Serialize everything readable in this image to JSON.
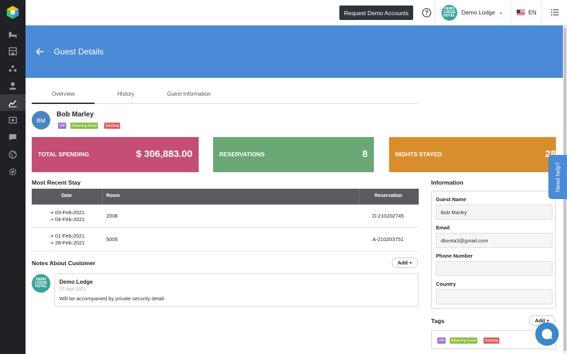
{
  "topbar": {
    "demo_button": "Request Demo Accounts",
    "help_icon": "?",
    "hotel_logo_text": "DEMO LODGE HOTEL",
    "property_name": "Demo Lodge",
    "language": "EN"
  },
  "sidebar": {
    "items": [
      "bed-icon",
      "building-icon",
      "users-group-icon",
      "person-icon",
      "analytics-icon",
      "dashboard-icon",
      "chat-icon",
      "globe-icon",
      "settings-icon"
    ],
    "active_item": "analytics-icon"
  },
  "banner": {
    "title": "Guest Details",
    "color": "#4a8ad6"
  },
  "tabs": [
    "Overview",
    "History",
    "Guest Information"
  ],
  "guest": {
    "initials": "BM",
    "name": "Bob Marley",
    "badges": [
      {
        "label": "VIP",
        "color": "#a374d5"
      },
      {
        "label": "Returning Guest",
        "color": "#8cbf3f"
      },
      {
        "label": "Smoking",
        "color": "#e05d5d"
      }
    ]
  },
  "stats": [
    {
      "label": "TOTAL SPENDING",
      "value": "$ 306,883.00",
      "color": "#c44e74"
    },
    {
      "label": "RESERVATIONS",
      "value": "8",
      "color": "#6aa774"
    },
    {
      "label": "NIGHTS STAYED",
      "value": "28",
      "color": "#d98e2e"
    }
  ],
  "recent_stay": {
    "title": "Most Recent Stay",
    "columns": [
      "Date",
      "Room",
      "Reservation"
    ],
    "rows": [
      {
        "checkin": "03-Feb-2021",
        "checkout": "04-Feb-2021",
        "room": "2008",
        "reservation": "D-210202745"
      },
      {
        "checkin": "01-Feb-2021",
        "checkout": "28-Feb-2021",
        "room": "5005",
        "reservation": "A-210203751"
      }
    ]
  },
  "notes": {
    "title": "Notes About Customer",
    "add_label": "Add +",
    "items": [
      {
        "author": "Demo Lodge",
        "date": "27-Apr-2021",
        "text": "Will be accompanied by private security detail",
        "avatar_text": "DEMO LODGE HOTEL"
      }
    ]
  },
  "information": {
    "title": "Information",
    "fields": [
      {
        "label": "Guest Name",
        "value": "Bob  Marley"
      },
      {
        "label": "Email",
        "value": "dkeota3@gmail.com"
      },
      {
        "label": "Phone Number",
        "value": ""
      },
      {
        "label": "Country",
        "value": ""
      }
    ]
  },
  "tags": {
    "title": "Tags",
    "add_label": "Add +",
    "items": [
      {
        "label": "VIP",
        "color": "#a374d5"
      },
      {
        "label": "Returning Guest",
        "color": "#8cbf3f"
      },
      {
        "label": "Smoking",
        "color": "#e05d5d"
      }
    ]
  },
  "help_widget": {
    "label": "Need help?"
  }
}
